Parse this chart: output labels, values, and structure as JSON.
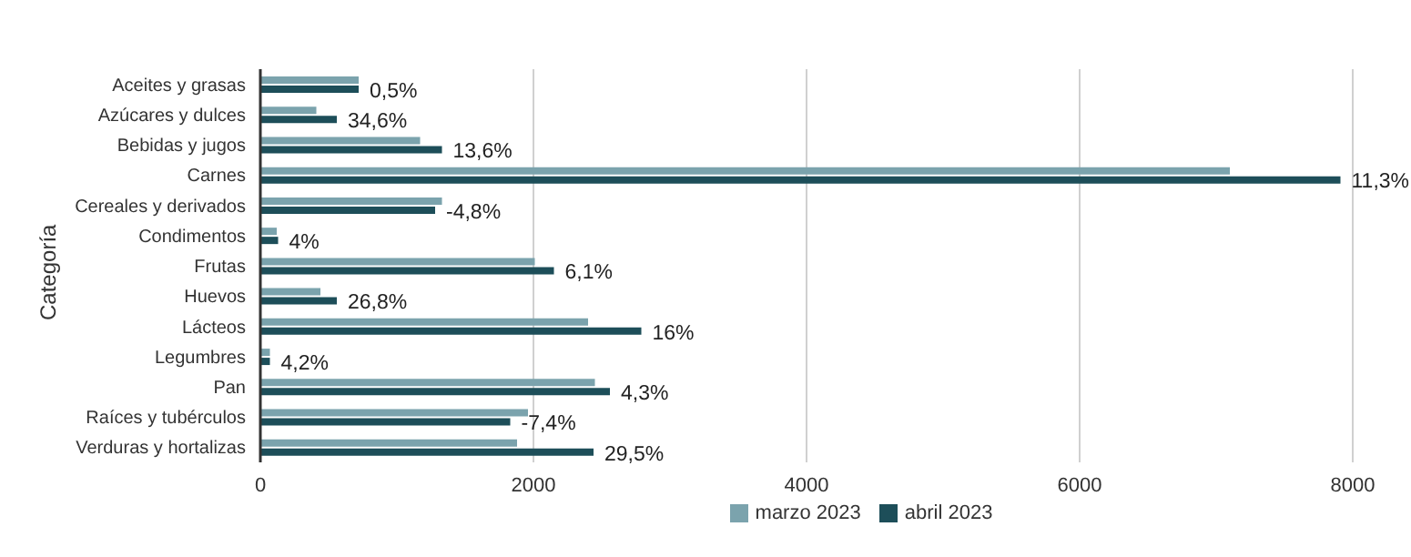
{
  "chart_data": {
    "type": "bar",
    "orientation": "horizontal",
    "ylabel": "Categoría",
    "categories": [
      "Aceites y grasas",
      "Azúcares y dulces",
      "Bebidas y jugos",
      "Carnes",
      "Cereales y derivados",
      "Condimentos",
      "Frutas",
      "Huevos",
      "Lácteos",
      "Legumbres",
      "Pan",
      "Raíces y tubérculos",
      "Verduras y hortalizas"
    ],
    "series": [
      {
        "name": "marzo 2023",
        "color": "#7ba3ad",
        "values": [
          720,
          410,
          1170,
          7100,
          1330,
          120,
          2010,
          440,
          2400,
          70,
          2450,
          1960,
          1880
        ]
      },
      {
        "name": "abril 2023",
        "color": "#1d4e59",
        "values": [
          720,
          560,
          1330,
          7910,
          1280,
          130,
          2150,
          560,
          2790,
          70,
          2560,
          1830,
          2440
        ]
      }
    ],
    "annotations": [
      {
        "text": "0,5%",
        "x": 720,
        "y": "Aceites y grasas"
      },
      {
        "text": "34,6%",
        "x": 560,
        "y": "Azúcares y dulces"
      },
      {
        "text": "13,6%",
        "x": 1330,
        "y": "Bebidas y jugos"
      },
      {
        "text": "11,3%",
        "x": 7910,
        "y": "Carnes"
      },
      {
        "text": "-4,8%",
        "x": 1280,
        "y": "Cereales y derivados"
      },
      {
        "text": "4%",
        "x": 130,
        "y": "Condimentos"
      },
      {
        "text": "6,1%",
        "x": 2150,
        "y": "Frutas"
      },
      {
        "text": "26,8%",
        "x": 560,
        "y": "Huevos"
      },
      {
        "text": "16%",
        "x": 2790,
        "y": "Lácteos"
      },
      {
        "text": "4,2%",
        "x": 70,
        "y": "Legumbres"
      },
      {
        "text": "4,3%",
        "x": 2560,
        "y": "Pan"
      },
      {
        "text": "-7,4%",
        "x": 1830,
        "y": "Raíces y tubérculos"
      },
      {
        "text": "29,5%",
        "x": 2440,
        "y": "Verduras y hortalizas"
      }
    ],
    "xlim": [
      0,
      8000
    ],
    "xticks": [
      0,
      2000,
      4000,
      6000,
      8000
    ],
    "grid": "x",
    "legend": "bottom"
  }
}
